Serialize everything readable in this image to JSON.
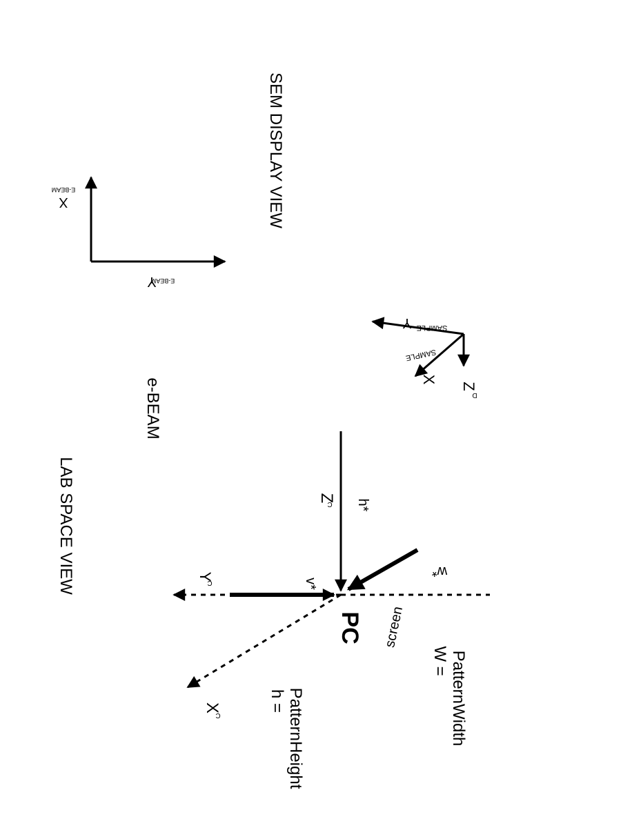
{
  "views": {
    "sem_display": "SEM DISPLAY VIEW",
    "lab_space": "LAB SPACE VIEW",
    "e_beam": "e-BEAM"
  },
  "sem_axes": {
    "x_letter": "X",
    "x_sub": "E-BEAM",
    "y_letter": "Y",
    "y_sub": "E-BEAM"
  },
  "sample_axes": {
    "y_letter": "Y",
    "y_sub": "SAMPLE",
    "x_letter": "X",
    "x_sub": "SAMPLE",
    "z_letter": "Z",
    "z_sub": "D"
  },
  "lab_axes": {
    "z_letter": "Z",
    "z_sub": "C",
    "h_star": "h*",
    "y_letter": "Y",
    "y_sub": "C",
    "v_star": "v*",
    "w_star": "w*",
    "pc": "PC",
    "screen": "screen",
    "x_letter": "X",
    "x_sub": "C"
  },
  "formulas": {
    "w_eq": "W =",
    "w_name": "PatternWidth",
    "h_eq": "h =",
    "h_name": "PatternHeight"
  },
  "colors": {
    "ink": "#000000",
    "background": "#ffffff"
  }
}
